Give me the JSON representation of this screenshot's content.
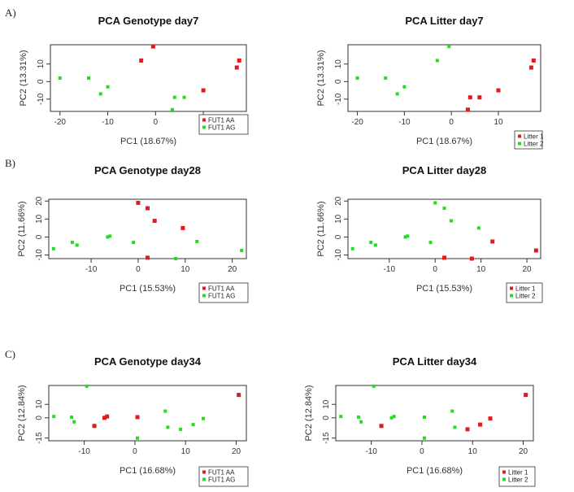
{
  "panel_letters": [
    "A)",
    "B)",
    "C)"
  ],
  "chart_data": [
    {
      "type": "scatter",
      "title": "PCA Genotype day7",
      "xlabel": "PC1 (18.67%)",
      "ylabel": "PC2 (13.31%)",
      "xlim": [
        -22,
        19
      ],
      "ylim": [
        -17,
        21
      ],
      "xticks": [
        -20,
        -10,
        0,
        10
      ],
      "yticks": [
        -10,
        0,
        10
      ],
      "ytick_labels": [
        "-10",
        "0",
        "10"
      ],
      "series": [
        {
          "name": "FUT1 AA",
          "color": "#e31a1c",
          "points": [
            [
              -0.5,
              20
            ],
            [
              -3,
              12
            ],
            [
              10,
              -5
            ],
            [
              17,
              8
            ],
            [
              17.5,
              12
            ]
          ]
        },
        {
          "name": "FUT1 AG",
          "color": "#22dd22",
          "points": [
            [
              -20,
              2
            ],
            [
              -14,
              2
            ],
            [
              -10,
              -3
            ],
            [
              -11.5,
              -7
            ],
            [
              4,
              -9
            ],
            [
              6,
              -9
            ],
            [
              3.5,
              -16
            ]
          ]
        }
      ],
      "legend": "bottom-right",
      "legend_entries": [
        "FUT1 AA",
        "FUT1 AG"
      ]
    },
    {
      "type": "scatter",
      "title": "PCA Litter day7",
      "xlabel": "PC1 (18.67%)",
      "ylabel": "PC2 (13.31%)",
      "xlim": [
        -22,
        19
      ],
      "ylim": [
        -17,
        21
      ],
      "xticks": [
        -20,
        -10,
        0,
        10
      ],
      "yticks": [
        -10,
        0,
        10
      ],
      "ytick_labels": [
        "-10",
        "0",
        "10"
      ],
      "series": [
        {
          "name": "Litter 1",
          "color": "#e31a1c",
          "points": [
            [
              4,
              -9
            ],
            [
              6,
              -9
            ],
            [
              3.5,
              -16
            ],
            [
              10,
              -5
            ],
            [
              17,
              8
            ],
            [
              17.5,
              12
            ]
          ]
        },
        {
          "name": "Litter 2",
          "color": "#22dd22",
          "points": [
            [
              -0.5,
              20
            ],
            [
              -3,
              12
            ],
            [
              -20,
              2
            ],
            [
              -14,
              2
            ],
            [
              -10,
              -3
            ],
            [
              -11.5,
              -7
            ]
          ]
        }
      ],
      "legend": "bottom-right",
      "legend_entries": [
        "Litter 1",
        "Litter 2"
      ]
    },
    {
      "type": "scatter",
      "title": "PCA Genotype day28",
      "xlabel": "PC1 (15.53%)",
      "ylabel": "PC2 (11.66%)",
      "xlim": [
        -19,
        23
      ],
      "ylim": [
        -12,
        21
      ],
      "xticks": [
        -10,
        0,
        10,
        20
      ],
      "yticks": [
        -10,
        0,
        10,
        20
      ],
      "ytick_labels": [
        "-10",
        "0",
        "10",
        "20"
      ],
      "series": [
        {
          "name": "FUT1 AA",
          "color": "#e31a1c",
          "points": [
            [
              0,
              19
            ],
            [
              2,
              16
            ],
            [
              3.5,
              9
            ],
            [
              9.5,
              5
            ],
            [
              2,
              -11.5
            ]
          ]
        },
        {
          "name": "FUT1 AG",
          "color": "#22dd22",
          "points": [
            [
              -18,
              -6.5
            ],
            [
              -14,
              -3
            ],
            [
              -13,
              -4.5
            ],
            [
              -6,
              0.5
            ],
            [
              -6.5,
              0
            ],
            [
              -1,
              -3
            ],
            [
              8,
              -12
            ],
            [
              12.5,
              -2.5
            ],
            [
              22,
              -7.5
            ]
          ]
        }
      ],
      "legend": "bottom-right",
      "legend_entries": [
        "FUT1 AA",
        "FUT1 AG"
      ]
    },
    {
      "type": "scatter",
      "title": "PCA Litter day28",
      "xlabel": "PC1 (15.53%)",
      "ylabel": "PC2 (11.66%)",
      "xlim": [
        -19,
        23
      ],
      "ylim": [
        -12,
        21
      ],
      "xticks": [
        -10,
        0,
        10,
        20
      ],
      "yticks": [
        -10,
        0,
        10,
        20
      ],
      "ytick_labels": [
        "-10",
        "0",
        "10",
        "20"
      ],
      "series": [
        {
          "name": "Litter 1",
          "color": "#e31a1c",
          "points": [
            [
              2,
              -11.5
            ],
            [
              8,
              -12
            ],
            [
              12.5,
              -2.5
            ],
            [
              22,
              -7.5
            ]
          ]
        },
        {
          "name": "Litter 2",
          "color": "#22dd22",
          "points": [
            [
              0,
              19
            ],
            [
              2,
              16
            ],
            [
              3.5,
              9
            ],
            [
              9.5,
              5
            ],
            [
              -18,
              -6.5
            ],
            [
              -14,
              -3
            ],
            [
              -13,
              -4.5
            ],
            [
              -6,
              0.5
            ],
            [
              -6.5,
              0
            ],
            [
              -1,
              -3
            ]
          ]
        }
      ],
      "legend": "bottom-right",
      "legend_entries": [
        "Litter 1",
        "Litter 2"
      ]
    },
    {
      "type": "scatter",
      "title": "PCA Genotype day34",
      "xlabel": "PC1 (16.68%)",
      "ylabel": "PC2 (12.84%)",
      "xlim": [
        -17,
        22
      ],
      "ylim": [
        -17,
        24
      ],
      "xticks": [
        -10,
        0,
        10,
        20
      ],
      "yticks": [
        -15,
        0,
        10
      ],
      "ytick_labels": [
        "-15",
        "0",
        "10"
      ],
      "series": [
        {
          "name": "FUT1 AA",
          "color": "#e31a1c",
          "points": [
            [
              -8,
              -6
            ],
            [
              -6,
              0
            ],
            [
              -5.5,
              1
            ],
            [
              0.5,
              0.5
            ],
            [
              20.5,
              17
            ]
          ]
        },
        {
          "name": "FUT1 AG",
          "color": "#22dd22",
          "points": [
            [
              -16,
              1
            ],
            [
              -12.5,
              0.5
            ],
            [
              -12,
              -3
            ],
            [
              -9.5,
              23.5
            ],
            [
              0.5,
              -15
            ],
            [
              6,
              5
            ],
            [
              6.5,
              -7
            ],
            [
              9,
              -8.5
            ],
            [
              11.5,
              -5
            ],
            [
              13.5,
              -0.5
            ]
          ]
        }
      ],
      "legend": "bottom-right",
      "legend_entries": [
        "FUT1 AA",
        "FUT1 AG"
      ]
    },
    {
      "type": "scatter",
      "title": "PCA Litter day34",
      "xlabel": "PC1 (16.68%)",
      "ylabel": "PC2 (12.84%)",
      "xlim": [
        -17,
        22
      ],
      "ylim": [
        -17,
        24
      ],
      "xticks": [
        -10,
        0,
        10,
        20
      ],
      "yticks": [
        -15,
        0,
        10
      ],
      "ytick_labels": [
        "-15",
        "0",
        "10"
      ],
      "series": [
        {
          "name": "Litter 1",
          "color": "#e31a1c",
          "points": [
            [
              -8,
              -6
            ],
            [
              9,
              -8.5
            ],
            [
              11.5,
              -5
            ],
            [
              13.5,
              -0.5
            ],
            [
              20.5,
              17
            ]
          ]
        },
        {
          "name": "Litter 2",
          "color": "#22dd22",
          "points": [
            [
              -16,
              1
            ],
            [
              -12.5,
              0.5
            ],
            [
              -12,
              -3
            ],
            [
              -9.5,
              23.5
            ],
            [
              -6,
              0
            ],
            [
              -5.5,
              1
            ],
            [
              0.5,
              0.5
            ],
            [
              0.5,
              -15
            ],
            [
              6,
              5
            ],
            [
              6.5,
              -7
            ]
          ]
        }
      ],
      "legend": "bottom-right",
      "legend_entries": [
        "Litter 1",
        "Litter 2"
      ]
    }
  ]
}
